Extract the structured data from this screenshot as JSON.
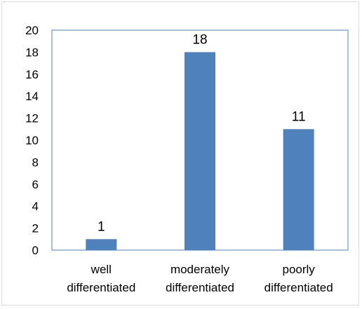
{
  "chart_data": {
    "type": "bar",
    "categories": [
      [
        "well",
        "differentiated"
      ],
      [
        "moderately",
        "differentiated"
      ],
      [
        "poorly",
        "differentiated"
      ]
    ],
    "values": [
      1,
      18,
      11
    ],
    "data_labels": [
      "1",
      "18",
      "11"
    ],
    "ylim": [
      0,
      20
    ],
    "yticks": [
      0,
      2,
      4,
      6,
      8,
      10,
      12,
      14,
      16,
      18,
      20
    ],
    "ytick_labels": [
      "0",
      "2",
      "4",
      "6",
      "8",
      "10",
      "12",
      "14",
      "16",
      "18",
      "20"
    ],
    "title": "",
    "xlabel": "",
    "ylabel": "",
    "grid": false,
    "legend": "none",
    "bar_color": "#4f81bd",
    "plot_border_color": "#4f81bd"
  }
}
